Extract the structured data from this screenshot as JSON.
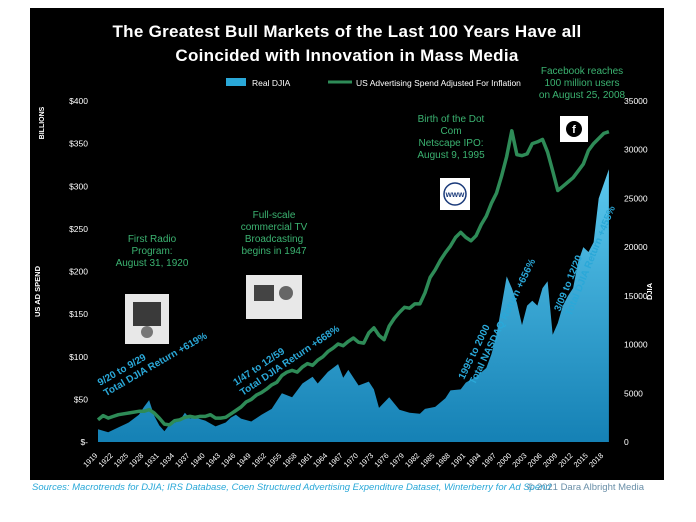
{
  "chart_data": {
    "type": "area",
    "title_lines": [
      "The Greatest Bull Markets of the Last 100 Years Have all",
      "Coincided with Innovation in Mass Media"
    ],
    "legend": [
      {
        "label": "Real DJIA",
        "color": "#2aa8d8",
        "kind": "area"
      },
      {
        "label": "US Advertising Spend Adjusted For Inflation",
        "color": "#2e8b57",
        "kind": "line"
      }
    ],
    "left_axis": {
      "title": "US AD SPEND",
      "unit_label": "BILLIONS",
      "range": [
        0,
        400
      ],
      "ticks": [
        "$-",
        "$50",
        "$100",
        "$150",
        "$200",
        "$250",
        "$300",
        "$350",
        "$400"
      ]
    },
    "right_axis": {
      "title": "DJIA",
      "range": [
        0,
        35000
      ],
      "ticks": [
        "0",
        "5000",
        "10000",
        "15000",
        "20000",
        "25000",
        "30000",
        "35000"
      ]
    },
    "x_axis": {
      "range": [
        1919,
        2020
      ],
      "ticks": [
        "1919",
        "1922",
        "1925",
        "1928",
        "1931",
        "1934",
        "1937",
        "1940",
        "1943",
        "1946",
        "1949",
        "1952",
        "1955",
        "1958",
        "1961",
        "1964",
        "1967",
        "1970",
        "1973",
        "1976",
        "1979",
        "1982",
        "1985",
        "1988",
        "1991",
        "1994",
        "1997",
        "2000",
        "2003",
        "2006",
        "2009",
        "2012",
        "2015",
        "2018"
      ]
    },
    "series": [
      {
        "name": "Real DJIA",
        "axis": "right",
        "points": [
          [
            1919,
            1300
          ],
          [
            1921,
            1000
          ],
          [
            1923,
            1500
          ],
          [
            1925,
            2000
          ],
          [
            1927,
            2800
          ],
          [
            1928,
            3600
          ],
          [
            1929,
            4300
          ],
          [
            1930,
            2700
          ],
          [
            1931,
            1700
          ],
          [
            1932,
            1100
          ],
          [
            1933,
            1800
          ],
          [
            1935,
            2200
          ],
          [
            1936,
            3000
          ],
          [
            1937,
            2400
          ],
          [
            1938,
            2500
          ],
          [
            1940,
            2200
          ],
          [
            1942,
            1600
          ],
          [
            1944,
            2000
          ],
          [
            1945,
            2500
          ],
          [
            1946,
            2800
          ],
          [
            1947,
            2400
          ],
          [
            1949,
            2100
          ],
          [
            1951,
            2800
          ],
          [
            1953,
            3400
          ],
          [
            1955,
            5000
          ],
          [
            1957,
            4600
          ],
          [
            1959,
            6000
          ],
          [
            1961,
            6700
          ],
          [
            1962,
            6000
          ],
          [
            1964,
            7200
          ],
          [
            1966,
            8000
          ],
          [
            1967,
            6600
          ],
          [
            1968,
            7400
          ],
          [
            1970,
            5800
          ],
          [
            1972,
            6200
          ],
          [
            1973,
            5400
          ],
          [
            1974,
            3500
          ],
          [
            1976,
            4600
          ],
          [
            1978,
            3300
          ],
          [
            1980,
            3000
          ],
          [
            1982,
            2900
          ],
          [
            1983,
            3400
          ],
          [
            1985,
            3600
          ],
          [
            1987,
            4500
          ],
          [
            1988,
            5300
          ],
          [
            1990,
            5400
          ],
          [
            1991,
            6100
          ],
          [
            1993,
            6700
          ],
          [
            1995,
            7600
          ],
          [
            1996,
            9000
          ],
          [
            1997,
            11000
          ],
          [
            1998,
            14000
          ],
          [
            1999,
            17000
          ],
          [
            2000,
            15800
          ],
          [
            2001,
            14300
          ],
          [
            2002,
            12000
          ],
          [
            2003,
            14000
          ],
          [
            2004,
            14500
          ],
          [
            2005,
            14000
          ],
          [
            2006,
            15800
          ],
          [
            2007,
            16500
          ],
          [
            2008,
            11000
          ],
          [
            2009,
            12200
          ],
          [
            2010,
            14000
          ],
          [
            2011,
            15000
          ],
          [
            2012,
            15800
          ],
          [
            2013,
            18500
          ],
          [
            2014,
            20000
          ],
          [
            2015,
            19500
          ],
          [
            2016,
            20500
          ],
          [
            2017,
            25000
          ],
          [
            2018,
            26500
          ],
          [
            2019,
            28000
          ]
        ]
      },
      {
        "name": "US Advertising Spend Adjusted For Inflation",
        "axis": "left",
        "points": [
          [
            1919,
            26
          ],
          [
            1920,
            31
          ],
          [
            1921,
            28
          ],
          [
            1922,
            30
          ],
          [
            1923,
            32
          ],
          [
            1925,
            34
          ],
          [
            1927,
            36
          ],
          [
            1928,
            36
          ],
          [
            1929,
            38
          ],
          [
            1930,
            34
          ],
          [
            1931,
            28
          ],
          [
            1932,
            21
          ],
          [
            1933,
            20
          ],
          [
            1934,
            25
          ],
          [
            1935,
            26
          ],
          [
            1936,
            29
          ],
          [
            1937,
            30
          ],
          [
            1938,
            29
          ],
          [
            1939,
            30
          ],
          [
            1940,
            30
          ],
          [
            1941,
            32
          ],
          [
            1942,
            28
          ],
          [
            1943,
            28
          ],
          [
            1944,
            29
          ],
          [
            1945,
            33
          ],
          [
            1946,
            37
          ],
          [
            1947,
            41
          ],
          [
            1948,
            47
          ],
          [
            1949,
            50
          ],
          [
            1950,
            55
          ],
          [
            1951,
            58
          ],
          [
            1952,
            62
          ],
          [
            1953,
            67
          ],
          [
            1954,
            70
          ],
          [
            1955,
            78
          ],
          [
            1956,
            82
          ],
          [
            1957,
            84
          ],
          [
            1958,
            82
          ],
          [
            1959,
            88
          ],
          [
            1960,
            92
          ],
          [
            1961,
            90
          ],
          [
            1962,
            96
          ],
          [
            1963,
            100
          ],
          [
            1964,
            106
          ],
          [
            1965,
            110
          ],
          [
            1966,
            115
          ],
          [
            1967,
            113
          ],
          [
            1968,
            118
          ],
          [
            1969,
            122
          ],
          [
            1970,
            117
          ],
          [
            1971,
            116
          ],
          [
            1972,
            128
          ],
          [
            1973,
            134
          ],
          [
            1974,
            125
          ],
          [
            1975,
            120
          ],
          [
            1976,
            136
          ],
          [
            1977,
            145
          ],
          [
            1978,
            152
          ],
          [
            1979,
            158
          ],
          [
            1980,
            157
          ],
          [
            1981,
            162
          ],
          [
            1982,
            162
          ],
          [
            1983,
            175
          ],
          [
            1984,
            193
          ],
          [
            1985,
            202
          ],
          [
            1986,
            213
          ],
          [
            1987,
            222
          ],
          [
            1988,
            230
          ],
          [
            1989,
            240
          ],
          [
            1990,
            246
          ],
          [
            1991,
            240
          ],
          [
            1992,
            236
          ],
          [
            1993,
            242
          ],
          [
            1994,
            255
          ],
          [
            1995,
            265
          ],
          [
            1996,
            280
          ],
          [
            1997,
            292
          ],
          [
            1998,
            312
          ],
          [
            1999,
            335
          ],
          [
            2000,
            365
          ],
          [
            2001,
            337
          ],
          [
            2002,
            336
          ],
          [
            2003,
            338
          ],
          [
            2004,
            350
          ],
          [
            2005,
            352
          ],
          [
            2006,
            355
          ],
          [
            2007,
            340
          ],
          [
            2008,
            318
          ],
          [
            2009,
            295
          ],
          [
            2010,
            300
          ],
          [
            2011,
            305
          ],
          [
            2012,
            310
          ],
          [
            2013,
            318
          ],
          [
            2014,
            326
          ],
          [
            2015,
            342
          ],
          [
            2016,
            350
          ],
          [
            2017,
            356
          ],
          [
            2018,
            362
          ],
          [
            2019,
            364
          ]
        ]
      }
    ],
    "annotations": [
      {
        "id": "radio",
        "lines": [
          "First Radio",
          "Program:",
          "August 31, 1920"
        ],
        "color": "#3bb371"
      },
      {
        "id": "tv",
        "lines": [
          "Full-scale",
          "commercial TV",
          "Broadcasting",
          "begins in 1947"
        ],
        "color": "#3bb371"
      },
      {
        "id": "dotcom",
        "lines": [
          "Birth of the Dot",
          "Com",
          "Netscape IPO:",
          "August 9, 1995"
        ],
        "color": "#3bb371"
      },
      {
        "id": "facebook",
        "lines": [
          "Facebook reaches",
          "100 million users",
          "on August 25, 2008"
        ],
        "color": "#3bb371"
      }
    ],
    "rotated_labels": [
      {
        "id": "r1",
        "lines": [
          "9/20 to 9/29",
          "Total DJIA Return +619%"
        ],
        "color": "#2aa8d8"
      },
      {
        "id": "r2",
        "lines": [
          "1/47 to 12/59",
          "Total DJIA Return +668%"
        ],
        "color": "#2aa8d8"
      },
      {
        "id": "r3",
        "lines": [
          "1995 to 2000",
          "Total NASDAQ Return +656%"
        ],
        "color": "#2aa8d8"
      },
      {
        "id": "r4",
        "lines": [
          "3/09 to 12/20",
          "Total DJIA Return +455%"
        ],
        "color": "#2aa8d8"
      }
    ],
    "icons": [
      {
        "id": "radio",
        "name": "radio-photo-icon"
      },
      {
        "id": "tv",
        "name": "tv-photo-icon"
      },
      {
        "id": "www",
        "name": "www-globe-icon",
        "label": "www"
      },
      {
        "id": "facebook",
        "name": "facebook-logo-icon",
        "label": "f"
      }
    ]
  },
  "footer": {
    "sources": "Sources: Macrotrends for DJIA; IRS Database, Coen Structured Advertising Expenditure Dataset, Winterberry for Ad Spend",
    "credit": "© 2021 Dara Albright Media"
  }
}
